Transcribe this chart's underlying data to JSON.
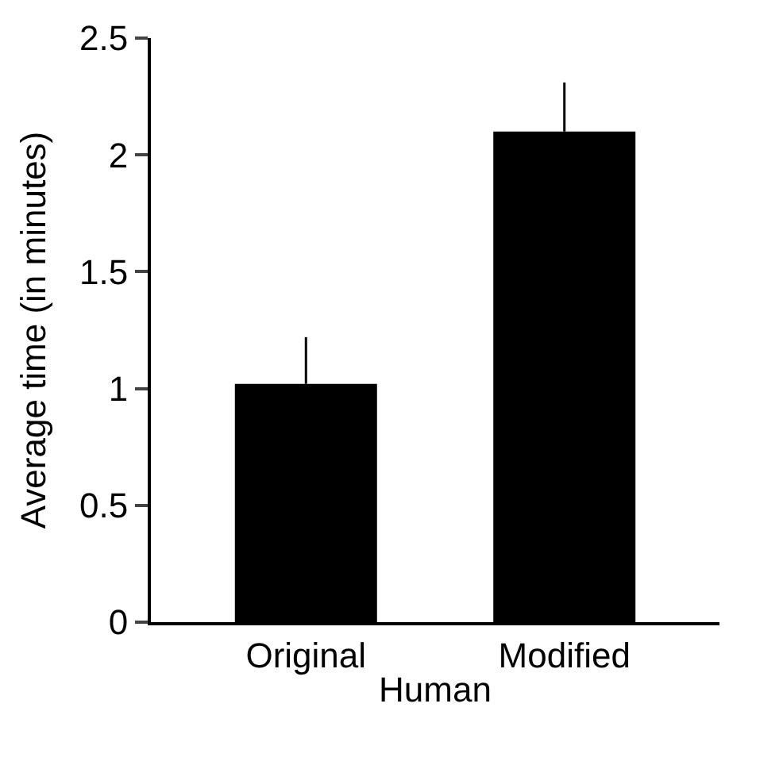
{
  "chart_data": {
    "type": "bar",
    "xlabel": "Human",
    "ylabel": "Average time (in minutes)",
    "categories": [
      "Original",
      "Modified"
    ],
    "values": [
      1.02,
      2.1
    ],
    "errors": [
      [
        1.02,
        1.22
      ],
      [
        2.1,
        2.31
      ]
    ],
    "color": "#000000",
    "ylim": [
      0,
      2.5
    ],
    "yticks": [
      0,
      0.5,
      1,
      1.5,
      2,
      2.5
    ]
  }
}
